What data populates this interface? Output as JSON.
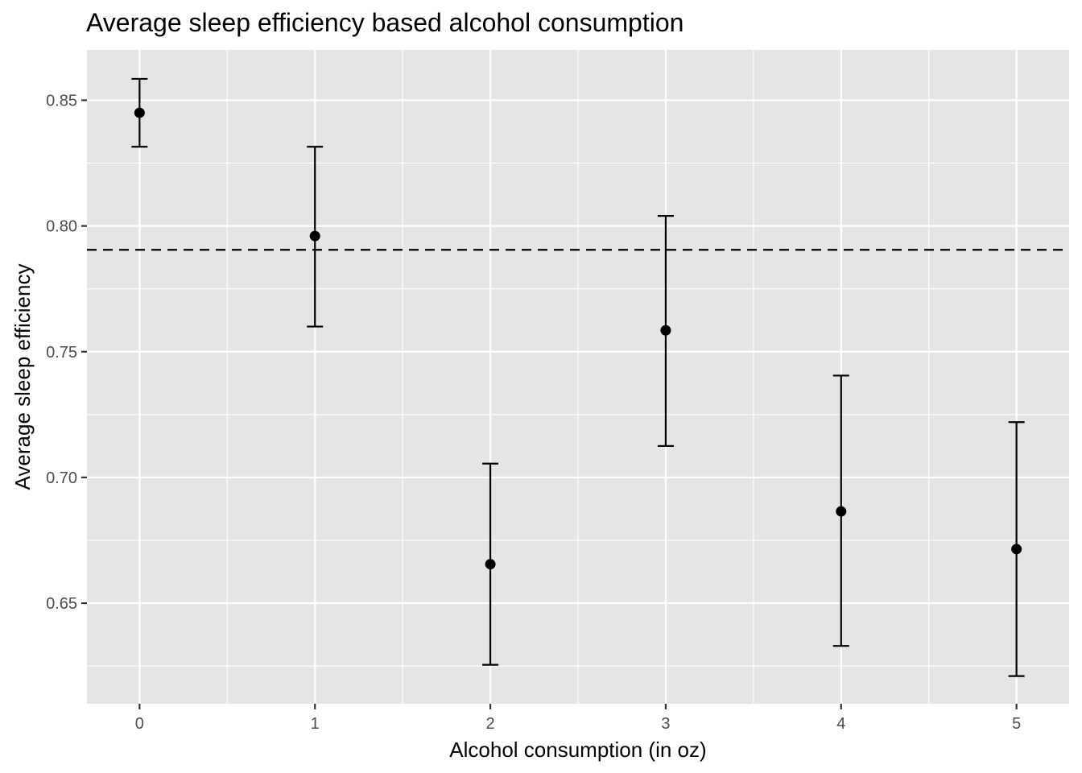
{
  "chart_data": {
    "type": "scatter",
    "title": "Average sleep efficiency based alcohol consumption",
    "xlabel": "Alcohol consumption (in oz)",
    "ylabel": "Average sleep efficiency",
    "x_ticks": [
      "0",
      "1",
      "2",
      "3",
      "4",
      "5"
    ],
    "y_ticks": [
      "0.65",
      "0.70",
      "0.75",
      "0.80",
      "0.85"
    ],
    "xlim": [
      -0.3,
      5.3
    ],
    "ylim": [
      0.61,
      0.87
    ],
    "grid": true,
    "reference_line": {
      "y": 0.7905,
      "style": "dashed"
    },
    "points": [
      {
        "x": 0,
        "y": 0.845,
        "ymin": 0.8315,
        "ymax": 0.8585
      },
      {
        "x": 1,
        "y": 0.796,
        "ymin": 0.76,
        "ymax": 0.8315
      },
      {
        "x": 2,
        "y": 0.6655,
        "ymin": 0.6255,
        "ymax": 0.7055
      },
      {
        "x": 3,
        "y": 0.7585,
        "ymin": 0.7125,
        "ymax": 0.804
      },
      {
        "x": 4,
        "y": 0.6865,
        "ymin": 0.633,
        "ymax": 0.7405
      },
      {
        "x": 5,
        "y": 0.6715,
        "ymin": 0.621,
        "ymax": 0.722
      }
    ],
    "colors": {
      "panel_background": "#e5e5e5",
      "grid": "#ffffff",
      "point": "#000000",
      "tick_label": "#4d4d4d"
    }
  }
}
